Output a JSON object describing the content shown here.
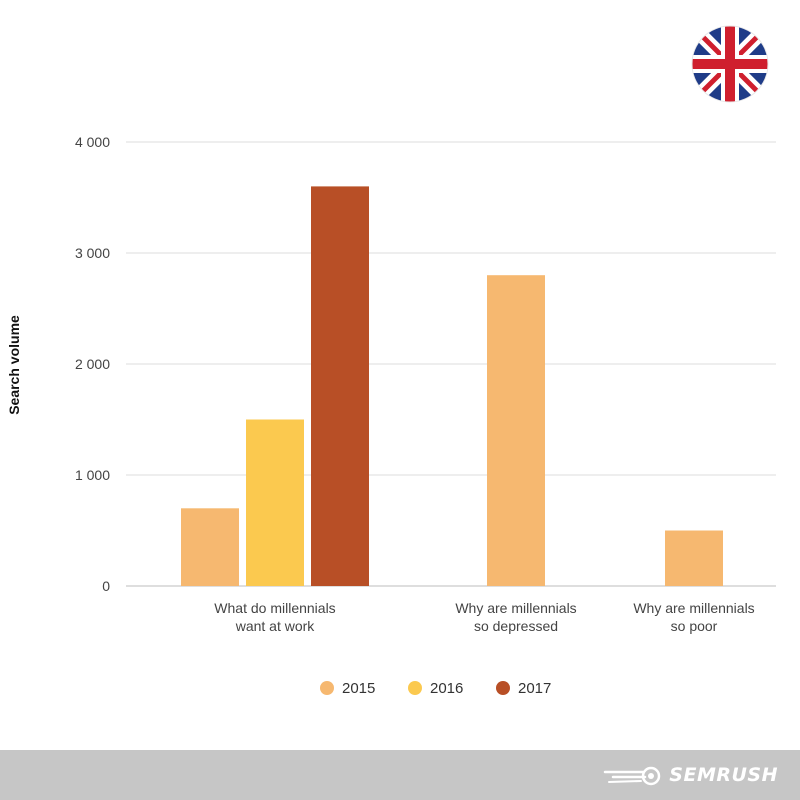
{
  "chart_data": {
    "type": "bar",
    "ylabel": "Search volume",
    "xlabel": "",
    "ylim": [
      0,
      4000
    ],
    "yticks": [
      0,
      1000,
      2000,
      3000,
      4000
    ],
    "ytick_labels": [
      "0",
      "1 000",
      "2 000",
      "3 000",
      "4 000"
    ],
    "categories": [
      [
        "What do millennials",
        "want at work"
      ],
      [
        "Why are millennials",
        "so depressed"
      ],
      [
        "Why are millennials",
        "so poor"
      ]
    ],
    "series": [
      {
        "name": "2015",
        "color": "#f6b870",
        "values": [
          700,
          2800,
          500
        ]
      },
      {
        "name": "2016",
        "color": "#fbc94f",
        "values": [
          1500,
          null,
          null
        ]
      },
      {
        "name": "2017",
        "color": "#b84f26",
        "values": [
          3600,
          null,
          null
        ]
      }
    ],
    "legend_position": "bottom-center",
    "grid": true
  },
  "branding": {
    "logo_text": "SEMRUSH",
    "flag_icon": "uk-flag-icon"
  },
  "colors": {
    "footer_bg": "#c6c6c6",
    "grid": "#dcdcdc",
    "axis_text": "#444444"
  }
}
